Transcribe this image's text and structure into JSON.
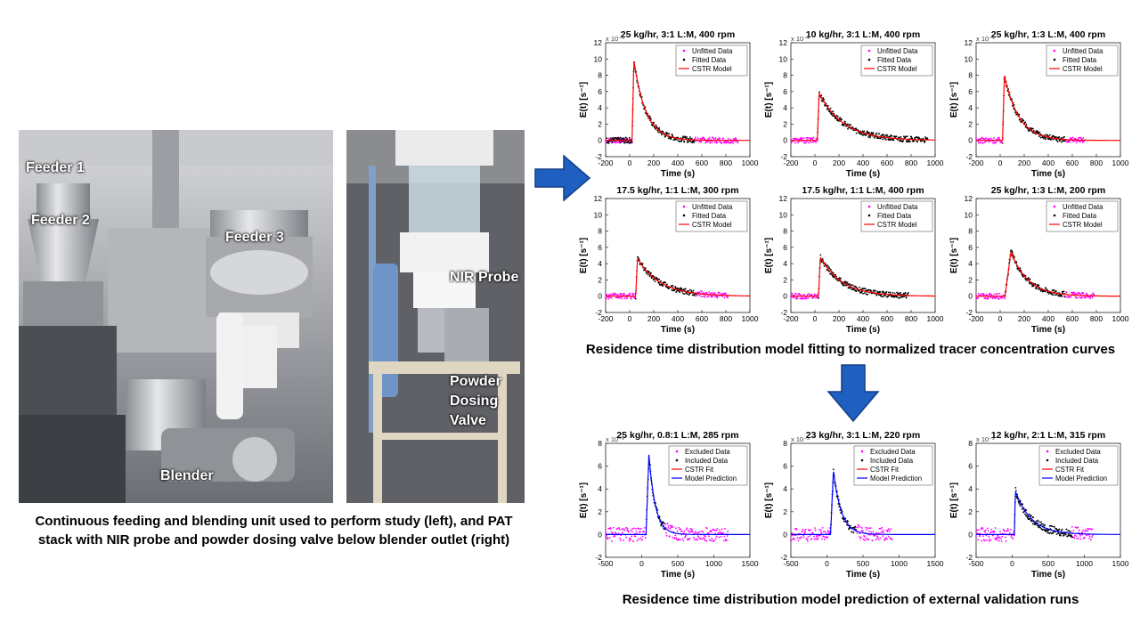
{
  "photos": {
    "left_labels": {
      "feeder1": "Feeder 1",
      "feeder2": "Feeder 2",
      "feeder3": "Feeder 3",
      "blender": "Blender"
    },
    "right_labels": {
      "nir": "NIR Probe",
      "valve": "Powder\nDosing\nValve"
    },
    "caption": "Continuous feeding and blending unit used to perform study (left), and PAT stack with NIR probe and powder dosing valve below blender outlet (right)"
  },
  "captions": {
    "fitting": "Residence time distribution model fitting to normalized tracer concentration curves",
    "prediction": "Residence time distribution model prediction of external validation runs"
  },
  "colors": {
    "arrow": "#1f5fbf",
    "unfitted": "#ff00ff",
    "fitted": "#000000",
    "cstr": "#ff0000",
    "prediction": "#0000ff"
  },
  "chart_data": [
    {
      "type": "line",
      "title": "25 kg/hr, 3:1 L:M, 400 rpm",
      "xlabel": "Time (s)",
      "ylabel": "E(t) [s⁻¹]",
      "exponent": "x 10⁻³",
      "xlim": [
        -200,
        1000
      ],
      "ylim": [
        -2,
        12
      ],
      "xticks": [
        -200,
        0,
        200,
        400,
        600,
        800,
        1000
      ],
      "yticks": [
        -2,
        0,
        2,
        4,
        6,
        8,
        10,
        12
      ],
      "legend": [
        "Unfitted Data",
        "Fitted Data",
        "CSTR Model"
      ],
      "legend_loc": "top-right",
      "model": {
        "t0": 20,
        "peak": 9.8,
        "tau": 100
      },
      "fitted_range": [
        -190,
        540
      ],
      "unfitted_ranges": [
        [
          -200,
          30
        ],
        [
          540,
          900
        ]
      ]
    },
    {
      "type": "line",
      "title": "10 kg/hr, 3:1 L:M, 400 rpm",
      "xlabel": "Time (s)",
      "ylabel": "E(t) [s⁻¹]",
      "exponent": "x 10⁻³",
      "xlim": [
        -200,
        1000
      ],
      "ylim": [
        -2,
        12
      ],
      "xticks": [
        -200,
        0,
        200,
        400,
        600,
        800,
        1000
      ],
      "yticks": [
        -2,
        0,
        2,
        4,
        6,
        8,
        10,
        12
      ],
      "legend": [
        "Unfitted Data",
        "Fitted Data",
        "CSTR Model"
      ],
      "legend_loc": "top-right",
      "model": {
        "t0": 20,
        "peak": 5.8,
        "tau": 200
      },
      "fitted_range": [
        20,
        940
      ],
      "unfitted_ranges": [
        [
          -200,
          25
        ]
      ]
    },
    {
      "type": "line",
      "title": "25 kg/hr, 1:3 L:M, 400 rpm",
      "xlabel": "Time (s)",
      "ylabel": "E(t) [s⁻¹]",
      "exponent": "x 10⁻³",
      "xlim": [
        -200,
        1000
      ],
      "ylim": [
        -2,
        12
      ],
      "xticks": [
        -200,
        0,
        200,
        400,
        600,
        800,
        1000
      ],
      "yticks": [
        -2,
        0,
        2,
        4,
        6,
        8,
        10,
        12
      ],
      "legend": [
        "Unfitted Data",
        "Fitted Data",
        "CSTR Model"
      ],
      "legend_loc": "top-right",
      "model": {
        "t0": 20,
        "peak": 8.0,
        "tau": 120
      },
      "fitted_range": [
        20,
        540
      ],
      "unfitted_ranges": [
        [
          -200,
          25
        ],
        [
          540,
          700
        ]
      ]
    },
    {
      "type": "line",
      "title": "17.5 kg/hr, 1:1 L:M, 300 rpm",
      "xlabel": "Time (s)",
      "ylabel": "E(t) [s⁻¹]",
      "exponent": "",
      "xlim": [
        -200,
        1000
      ],
      "ylim": [
        -2,
        12
      ],
      "xticks": [
        -200,
        0,
        200,
        400,
        600,
        800,
        1000
      ],
      "yticks": [
        -2,
        0,
        2,
        4,
        6,
        8,
        10,
        12
      ],
      "legend": [
        "Unfitted Data",
        "Fitted Data",
        "CSTR Model"
      ],
      "legend_loc": "top-right",
      "model": {
        "t0": 50,
        "peak": 4.6,
        "tau": 190
      },
      "fitted_range": [
        50,
        560
      ],
      "unfitted_ranges": [
        [
          -200,
          55
        ],
        [
          560,
          820
        ]
      ]
    },
    {
      "type": "line",
      "title": "17.5 kg/hr, 1:1 L:M, 400 rpm",
      "xlabel": "Time (s)",
      "ylabel": "E(t) [s⁻¹]",
      "exponent": "",
      "xlim": [
        -200,
        1000
      ],
      "ylim": [
        -2,
        12
      ],
      "xticks": [
        -200,
        0,
        200,
        400,
        600,
        800,
        1000
      ],
      "yticks": [
        -2,
        0,
        2,
        4,
        6,
        8,
        10,
        12
      ],
      "legend": [
        "Unfitted Data",
        "Fitted Data",
        "CSTR Model"
      ],
      "legend_loc": "top-right",
      "model": {
        "t0": 30,
        "peak": 4.8,
        "tau": 180
      },
      "fitted_range": [
        30,
        780
      ],
      "unfitted_ranges": [
        [
          -200,
          35
        ]
      ]
    },
    {
      "type": "line",
      "title": "25 kg/hr, 1:3 L:M, 200 rpm",
      "xlabel": "Time (s)",
      "ylabel": "E(t) [s⁻¹]",
      "exponent": "",
      "xlim": [
        -200,
        1000
      ],
      "ylim": [
        -2,
        12
      ],
      "xticks": [
        -200,
        0,
        200,
        400,
        600,
        800,
        1000
      ],
      "yticks": [
        -2,
        0,
        2,
        4,
        6,
        8,
        10,
        12
      ],
      "legend": [
        "Unfitted Data",
        "Fitted Data",
        "CSTR Model"
      ],
      "legend_loc": "top-right",
      "model": {
        "t0": 40,
        "peak": 5.5,
        "tau": 140,
        "rise": 50
      },
      "fitted_range": [
        40,
        540
      ],
      "unfitted_ranges": [
        [
          -200,
          45
        ],
        [
          540,
          780
        ]
      ]
    },
    {
      "type": "line",
      "title": "25 kg/hr, 0.8:1 L:M, 285 rpm",
      "xlabel": "Time (s)",
      "ylabel": "E(t) [s⁻¹]",
      "exponent": "x 10⁻³",
      "xlim": [
        -500,
        1500
      ],
      "ylim": [
        -2,
        8
      ],
      "xticks": [
        -500,
        0,
        500,
        1000,
        1500
      ],
      "yticks": [
        -2,
        0,
        2,
        4,
        6,
        8
      ],
      "legend": [
        "Excluded Data",
        "Included Data",
        "CSTR Fit",
        "Model Prediction"
      ],
      "legend_loc": "top-right",
      "model": {
        "t0": 60,
        "peak": 7.0,
        "tau": 90,
        "rise": 40
      },
      "fitted_range": [
        60,
        320
      ],
      "unfitted_ranges": [
        [
          -500,
          60
        ],
        [
          320,
          1200
        ]
      ]
    },
    {
      "type": "line",
      "title": "23 kg/hr, 3:1 L:M, 220 rpm",
      "xlabel": "Time (s)",
      "ylabel": "E(t) [s⁻¹]",
      "exponent": "x 10⁻³",
      "xlim": [
        -500,
        1500
      ],
      "ylim": [
        -2,
        8
      ],
      "xticks": [
        -500,
        0,
        500,
        1000,
        1500
      ],
      "yticks": [
        -2,
        0,
        2,
        4,
        6,
        8
      ],
      "legend": [
        "Excluded Data",
        "Included Data",
        "CSTR Fit",
        "Model Prediction"
      ],
      "legend_loc": "top-right",
      "model": {
        "t0": 50,
        "peak": 5.6,
        "tau": 110,
        "rise": 40
      },
      "fitted_range": [
        50,
        400
      ],
      "unfitted_ranges": [
        [
          -500,
          50
        ],
        [
          400,
          900
        ]
      ]
    },
    {
      "type": "line",
      "title": "12 kg/hr, 2:1 L:M, 315 rpm",
      "xlabel": "Time (s)",
      "ylabel": "E(t) [s⁻¹]",
      "exponent": "x 10⁻³",
      "xlim": [
        -500,
        1500
      ],
      "ylim": [
        -2,
        8
      ],
      "xticks": [
        -500,
        0,
        500,
        1000,
        1500
      ],
      "yticks": [
        -2,
        0,
        2,
        4,
        6,
        8
      ],
      "legend": [
        "Excluded Data",
        "Included Data",
        "CSTR Fit",
        "Model Prediction"
      ],
      "legend_loc": "top-right",
      "model": {
        "t0": 30,
        "peak": 3.8,
        "tau": 220
      },
      "fitted_range": [
        30,
        830
      ],
      "unfitted_ranges": [
        [
          -500,
          35
        ],
        [
          830,
          1120
        ]
      ]
    }
  ]
}
